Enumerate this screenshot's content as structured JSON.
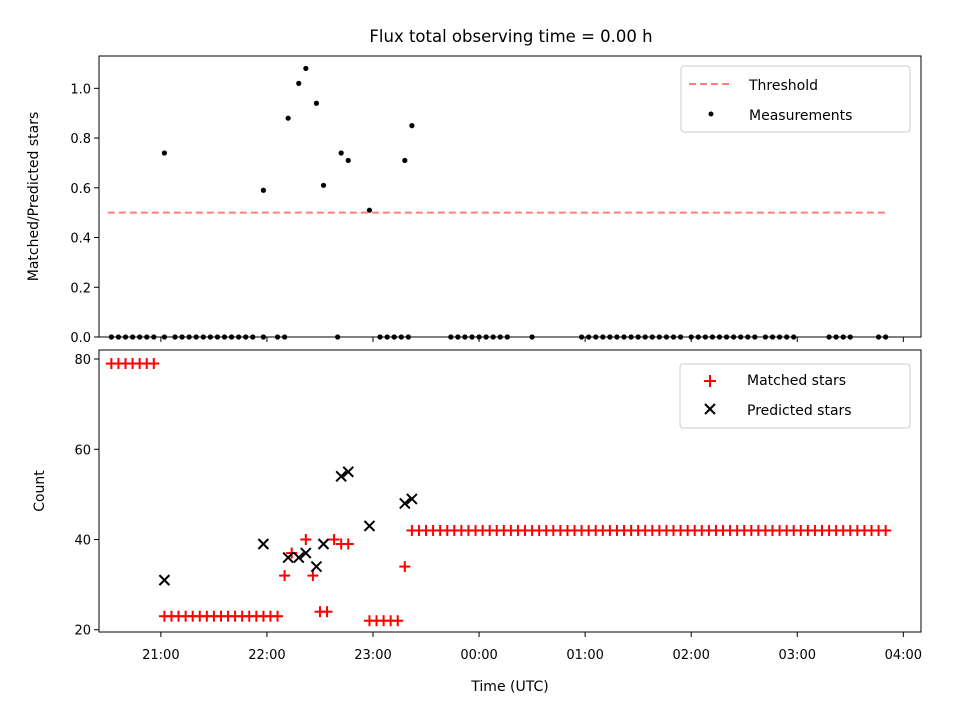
{
  "chart_data": [
    {
      "type": "scatter",
      "title": "Flux total observing time = 0.00 h",
      "xlabel": "",
      "ylabel": "Matched/Predicted stars",
      "ylim": [
        0,
        1.13
      ],
      "yticks": [
        "0.0",
        "0.2",
        "0.4",
        "0.6",
        "0.8",
        "1.0"
      ],
      "xlim": [
        "20:25",
        "04:10"
      ],
      "legend": {
        "position": "top-right",
        "entries": [
          "Threshold",
          "Measurements"
        ]
      },
      "colors": {
        "threshold": "#ff7f7f",
        "measurements": "#000000"
      },
      "threshold": {
        "name": "Threshold",
        "y": 0.5,
        "x_start": "20:30",
        "x_end": "03:50"
      },
      "series": [
        {
          "name": "Measurements",
          "x": [
            "20:32",
            "20:36",
            "20:40",
            "20:44",
            "20:48",
            "20:52",
            "20:56",
            "21:02",
            "21:08",
            "21:12",
            "21:16",
            "21:20",
            "21:24",
            "21:28",
            "21:32",
            "21:36",
            "21:40",
            "21:44",
            "21:48",
            "21:52",
            "21:58",
            "22:06",
            "22:10",
            "22:40",
            "23:04",
            "23:08",
            "23:12",
            "23:16",
            "23:20",
            "23:44",
            "23:48",
            "23:52",
            "23:56",
            "00:00",
            "00:04",
            "00:08",
            "00:12",
            "00:16",
            "00:30",
            "00:58",
            "01:02",
            "01:06",
            "01:10",
            "01:14",
            "01:18",
            "01:22",
            "01:26",
            "01:30",
            "01:34",
            "01:38",
            "01:42",
            "01:46",
            "01:50",
            "01:54",
            "02:00",
            "02:04",
            "02:08",
            "02:12",
            "02:16",
            "02:20",
            "02:24",
            "02:28",
            "02:32",
            "02:36",
            "02:42",
            "02:46",
            "02:50",
            "02:54",
            "02:58",
            "03:18",
            "03:22",
            "03:26",
            "03:30",
            "03:46",
            "03:50",
            "21:02",
            "21:58",
            "22:12",
            "22:18",
            "22:22",
            "22:28",
            "22:32",
            "22:42",
            "22:46",
            "22:58",
            "23:18",
            "23:22"
          ],
          "y": [
            0,
            0,
            0,
            0,
            0,
            0,
            0,
            0,
            0,
            0,
            0,
            0,
            0,
            0,
            0,
            0,
            0,
            0,
            0,
            0,
            0,
            0,
            0,
            0,
            0,
            0,
            0,
            0,
            0,
            0,
            0,
            0,
            0,
            0,
            0,
            0,
            0,
            0,
            0,
            0,
            0,
            0,
            0,
            0,
            0,
            0,
            0,
            0,
            0,
            0,
            0,
            0,
            0,
            0,
            0,
            0,
            0,
            0,
            0,
            0,
            0,
            0,
            0,
            0,
            0,
            0,
            0,
            0,
            0,
            0,
            0,
            0,
            0,
            0,
            0,
            0.74,
            0.59,
            0.88,
            1.02,
            1.08,
            0.94,
            0.61,
            0.74,
            0.71,
            0.51,
            0.71,
            0.85
          ]
        }
      ]
    },
    {
      "type": "scatter",
      "title": "",
      "xlabel": "Time (UTC)",
      "ylabel": "Count",
      "ylim": [
        19.5,
        82
      ],
      "yticks": [
        "20",
        "40",
        "60",
        "80"
      ],
      "xlim": [
        "20:25",
        "04:10"
      ],
      "xticks": [
        "21:00",
        "22:00",
        "23:00",
        "00:00",
        "01:00",
        "02:00",
        "03:00",
        "04:00"
      ],
      "legend": {
        "position": "top-right",
        "entries": [
          "Matched stars",
          "Predicted stars"
        ]
      },
      "colors": {
        "matched": "#ff0000",
        "predicted": "#000000"
      },
      "series": [
        {
          "name": "Matched stars",
          "x": [
            "20:32",
            "20:36",
            "20:40",
            "20:44",
            "20:48",
            "20:52",
            "20:56",
            "21:02",
            "21:06",
            "21:10",
            "21:14",
            "21:18",
            "21:22",
            "21:26",
            "21:30",
            "21:34",
            "21:38",
            "21:42",
            "21:46",
            "21:50",
            "21:54",
            "21:58",
            "22:02",
            "22:06",
            "22:10",
            "22:14",
            "22:22",
            "22:26",
            "22:30",
            "22:34",
            "22:38",
            "22:42",
            "22:46",
            "22:58",
            "23:02",
            "23:06",
            "23:10",
            "23:14",
            "23:18",
            "23:22",
            "23:26",
            "23:30",
            "23:34",
            "23:38",
            "23:42",
            "23:46",
            "23:50",
            "23:54",
            "23:58",
            "00:02",
            "00:06",
            "00:10",
            "00:14",
            "00:18",
            "00:22",
            "00:26",
            "00:30",
            "00:34",
            "00:38",
            "00:42",
            "00:46",
            "00:50",
            "00:54",
            "00:58",
            "01:02",
            "01:06",
            "01:10",
            "01:14",
            "01:18",
            "01:22",
            "01:26",
            "01:30",
            "01:34",
            "01:38",
            "01:42",
            "01:46",
            "01:50",
            "01:54",
            "01:58",
            "02:02",
            "02:06",
            "02:10",
            "02:14",
            "02:18",
            "02:22",
            "02:26",
            "02:30",
            "02:34",
            "02:38",
            "02:42",
            "02:46",
            "02:50",
            "02:54",
            "02:58",
            "03:02",
            "03:06",
            "03:10",
            "03:14",
            "03:18",
            "03:22",
            "03:26",
            "03:30",
            "03:34",
            "03:38",
            "03:42",
            "03:46",
            "03:50"
          ],
          "y": [
            79,
            79,
            79,
            79,
            79,
            79,
            79,
            23,
            23,
            23,
            23,
            23,
            23,
            23,
            23,
            23,
            23,
            23,
            23,
            23,
            23,
            23,
            23,
            23,
            32,
            37,
            40,
            32,
            24,
            24,
            40,
            39,
            39,
            22,
            22,
            22,
            22,
            22,
            34,
            42,
            42,
            42,
            42,
            42,
            42,
            42,
            42,
            42,
            42,
            42,
            42,
            42,
            42,
            42,
            42,
            42,
            42,
            42,
            42,
            42,
            42,
            42,
            42,
            42,
            42,
            42,
            42,
            42,
            42,
            42,
            42,
            42,
            42,
            42,
            42,
            42,
            42,
            42,
            42,
            42,
            42,
            42,
            42,
            42,
            42,
            42,
            42,
            42,
            42,
            42,
            42,
            42,
            42,
            42,
            42,
            42,
            42,
            42,
            42,
            42,
            42,
            42,
            42,
            42,
            42,
            42,
            42
          ]
        },
        {
          "name": "Predicted stars",
          "x": [
            "21:02",
            "21:58",
            "22:12",
            "22:18",
            "22:22",
            "22:28",
            "22:32",
            "22:42",
            "22:46",
            "22:58",
            "23:18",
            "23:22"
          ],
          "y": [
            31,
            39,
            36,
            36,
            37,
            34,
            39,
            54,
            55,
            43,
            48,
            49
          ]
        }
      ]
    }
  ]
}
